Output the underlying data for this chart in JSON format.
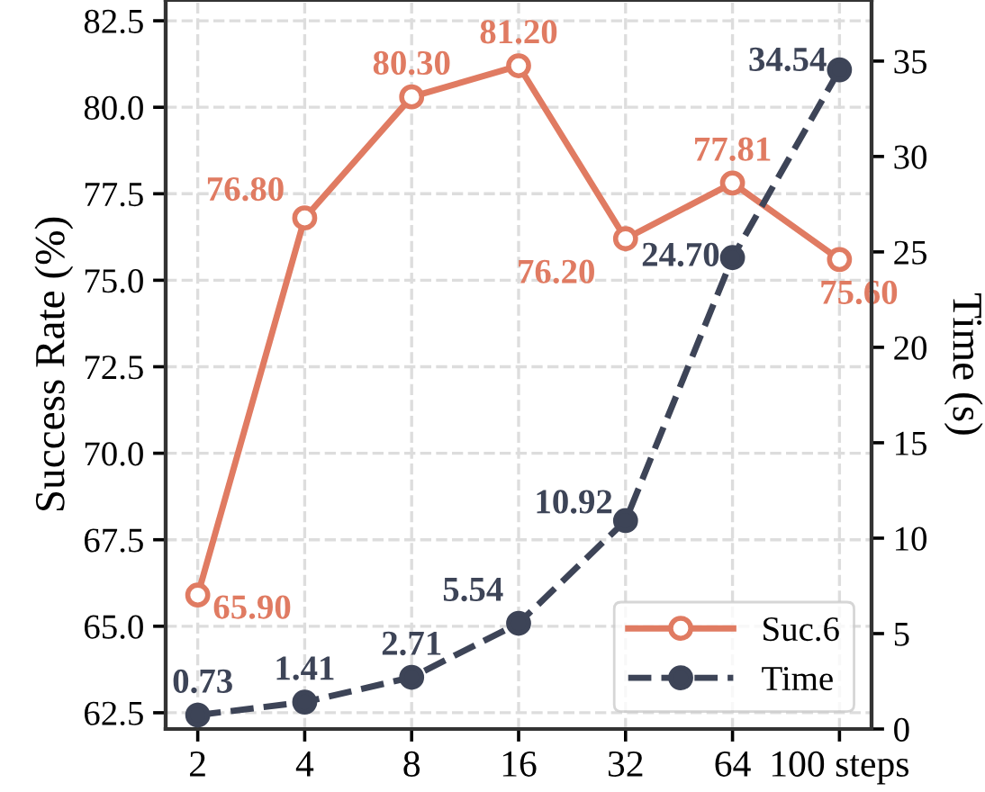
{
  "chart_data": {
    "type": "line",
    "categories": [
      "2",
      "4",
      "8",
      "16",
      "32",
      "64",
      "100 steps"
    ],
    "ylabel": "Success Rate (%)",
    "y2label": "Time (s)",
    "ylim": [
      62.03,
      83.1
    ],
    "yticks": [
      {
        "value": 62.5,
        "label": "62.5"
      },
      {
        "value": 65,
        "label": "65.0"
      },
      {
        "value": 67.5,
        "label": "67.5"
      },
      {
        "value": 70,
        "label": "70.0"
      },
      {
        "value": 72.5,
        "label": "72.5"
      },
      {
        "value": 75,
        "label": "75.0"
      },
      {
        "value": 77.5,
        "label": "77.5"
      },
      {
        "value": 80,
        "label": "80.0"
      },
      {
        "value": 82.5,
        "label": "82.5"
      }
    ],
    "y2lim": [
      0,
      38.2
    ],
    "y2ticks": [
      0,
      5,
      10,
      15,
      20,
      25,
      30,
      35
    ],
    "series": [
      {
        "name": "Suc.6",
        "color": "#e07b62",
        "values": [
          65.9,
          76.8,
          80.3,
          81.2,
          76.2,
          77.81,
          75.6
        ],
        "value_labels": [
          "65.90",
          "76.80",
          "80.30",
          "81.20",
          "76.20",
          "77.81",
          "75.60"
        ],
        "axis": "y",
        "line_style": "solid"
      },
      {
        "name": "Time",
        "color": "#3d4457",
        "values": [
          0.73,
          1.41,
          2.71,
          5.54,
          10.92,
          24.7,
          34.54
        ],
        "value_labels": [
          "0.73",
          "1.41",
          "2.71",
          "5.54",
          "10.92",
          "24.70",
          "34.54"
        ],
        "axis": "y2",
        "line_style": "dashed"
      }
    ],
    "marker": "circle",
    "grid": true,
    "legend": "bottom right"
  }
}
